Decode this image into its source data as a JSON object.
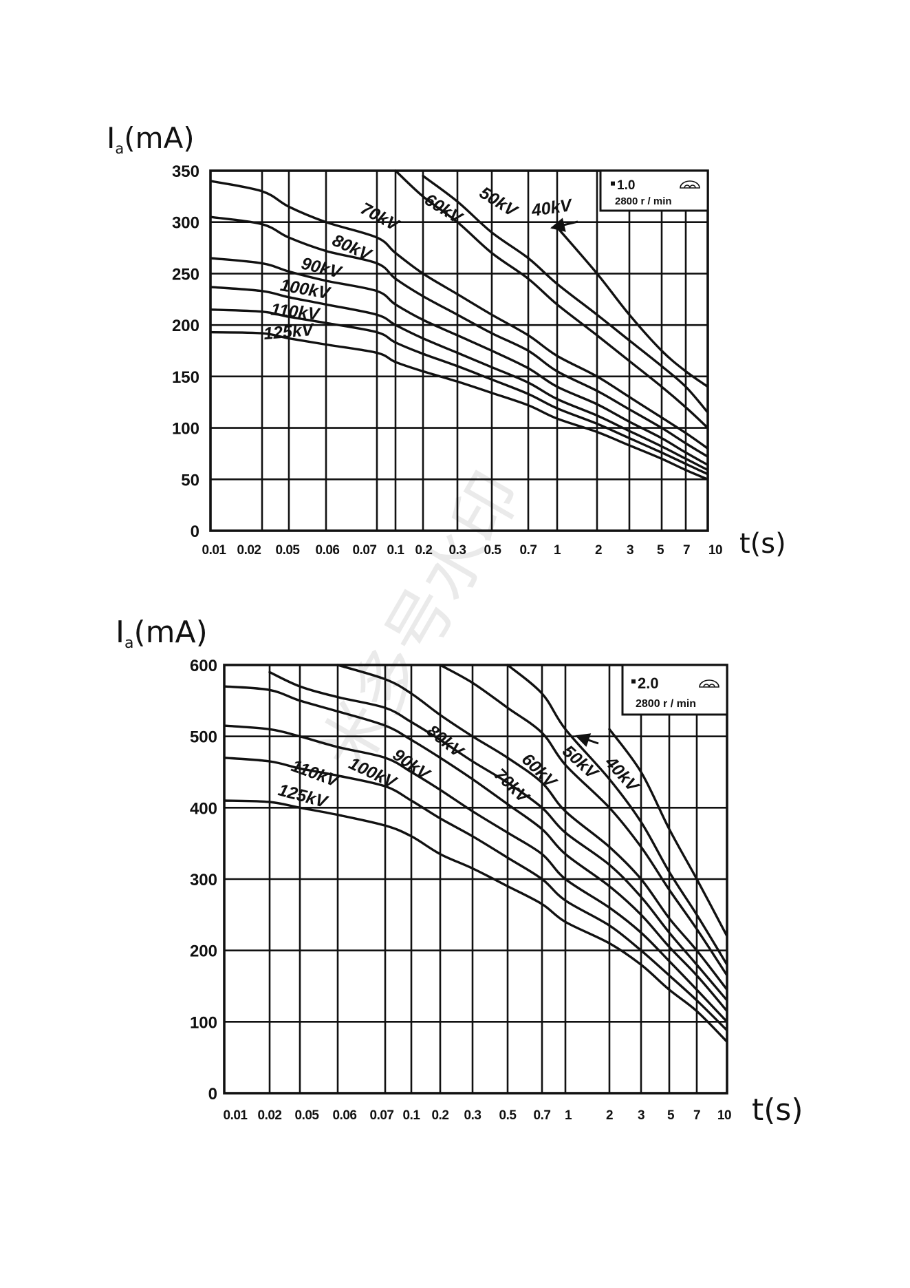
{
  "watermark": "米多号水印",
  "chart_data": [
    {
      "type": "line",
      "ylabel": "I",
      "ylabel_sub": "a",
      "ylabel_unit": "(mA)",
      "xlabel": "t(s)",
      "ylim": [
        0,
        350
      ],
      "yticks": [
        "0",
        "50",
        "100",
        "150",
        "200",
        "250",
        "300",
        "350"
      ],
      "ytick_values": [
        0,
        50,
        100,
        150,
        200,
        250,
        300,
        350
      ],
      "xticks": [
        "0.01",
        "0.02",
        "0.05",
        "0.06",
        "0.07",
        "0.1",
        "0.2",
        "0.3",
        "0.5",
        "0.7",
        "1",
        "2",
        "3",
        "5",
        "7",
        "10"
      ],
      "legend": {
        "focus": "1.0",
        "speed": "2800 r / min"
      },
      "series": [
        {
          "name": "40kV",
          "values": [
            null,
            null,
            null,
            null,
            null,
            null,
            null,
            null,
            null,
            null,
            295,
            250,
            210,
            175,
            155,
            140
          ]
        },
        {
          "name": "50kV",
          "values": [
            null,
            null,
            null,
            null,
            null,
            null,
            345,
            320,
            290,
            265,
            240,
            210,
            185,
            160,
            140,
            115
          ]
        },
        {
          "name": "60kV",
          "values": [
            null,
            null,
            null,
            null,
            null,
            350,
            325,
            300,
            270,
            245,
            220,
            190,
            165,
            140,
            120,
            100
          ]
        },
        {
          "name": "70kV",
          "values": [
            340,
            330,
            315,
            300,
            285,
            270,
            250,
            230,
            210,
            190,
            170,
            150,
            130,
            110,
            95,
            80
          ]
        },
        {
          "name": "80kV",
          "values": [
            305,
            298,
            285,
            272,
            260,
            245,
            228,
            210,
            192,
            175,
            155,
            136,
            118,
            100,
            85,
            72
          ]
        },
        {
          "name": "90kV",
          "values": [
            265,
            260,
            252,
            243,
            233,
            220,
            205,
            190,
            175,
            158,
            140,
            123,
            106,
            90,
            76,
            64
          ]
        },
        {
          "name": "100kV",
          "values": [
            237,
            233,
            227,
            220,
            210,
            200,
            187,
            173,
            159,
            144,
            128,
            112,
            97,
            82,
            70,
            59
          ]
        },
        {
          "name": "110kV",
          "values": [
            215,
            213,
            208,
            202,
            193,
            183,
            172,
            160,
            147,
            133,
            119,
            104,
            90,
            76,
            65,
            55
          ]
        },
        {
          "name": "125kV",
          "values": [
            193,
            192,
            187,
            181,
            173,
            164,
            155,
            145,
            134,
            122,
            109,
            96,
            83,
            70,
            59,
            50
          ]
        }
      ]
    },
    {
      "type": "line",
      "ylabel": "I",
      "ylabel_sub": "a",
      "ylabel_unit": "(mA)",
      "xlabel": "t(s)",
      "ylim": [
        0,
        600
      ],
      "yticks": [
        "0",
        "100",
        "200",
        "300",
        "400",
        "500",
        "600"
      ],
      "ytick_values": [
        0,
        100,
        200,
        300,
        400,
        500,
        600
      ],
      "xticks": [
        "0.01",
        "0.02",
        "0.05",
        "0.06",
        "0.07",
        "0.1",
        "0.2",
        "0.3",
        "0.5",
        "0.7",
        "1",
        "2",
        "3",
        "5",
        "7",
        "10"
      ],
      "legend": {
        "focus": "2.0",
        "speed": "2800 r / min"
      },
      "series": [
        {
          "name": "40kV",
          "values": [
            null,
            null,
            null,
            null,
            null,
            null,
            null,
            null,
            null,
            null,
            null,
            510,
            450,
            370,
            300,
            220
          ]
        },
        {
          "name": "50kV",
          "values": [
            null,
            null,
            null,
            null,
            null,
            null,
            null,
            null,
            600,
            560,
            510,
            440,
            380,
            310,
            250,
            180
          ]
        },
        {
          "name": "60kV",
          "values": [
            null,
            null,
            null,
            null,
            null,
            null,
            600,
            575,
            540,
            505,
            460,
            400,
            345,
            285,
            230,
            165
          ]
        },
        {
          "name": "70kV",
          "values": [
            null,
            null,
            null,
            600,
            580,
            560,
            530,
            500,
            470,
            435,
            395,
            345,
            300,
            245,
            200,
            145
          ]
        },
        {
          "name": "80kV",
          "values": [
            null,
            590,
            570,
            555,
            540,
            520,
            495,
            465,
            435,
            400,
            365,
            320,
            275,
            225,
            180,
            130
          ]
        },
        {
          "name": "90kV",
          "values": [
            570,
            565,
            550,
            535,
            515,
            495,
            470,
            440,
            405,
            370,
            335,
            290,
            250,
            205,
            165,
            115
          ]
        },
        {
          "name": "100kV",
          "values": [
            515,
            510,
            500,
            485,
            470,
            450,
            425,
            395,
            365,
            335,
            300,
            260,
            225,
            185,
            145,
            100
          ]
        },
        {
          "name": "110kV",
          "values": [
            470,
            465,
            455,
            445,
            430,
            410,
            385,
            360,
            330,
            300,
            270,
            235,
            200,
            165,
            130,
            88
          ]
        },
        {
          "name": "125kV",
          "values": [
            410,
            408,
            400,
            390,
            375,
            360,
            335,
            315,
            290,
            265,
            240,
            210,
            180,
            145,
            115,
            72
          ]
        }
      ]
    }
  ]
}
